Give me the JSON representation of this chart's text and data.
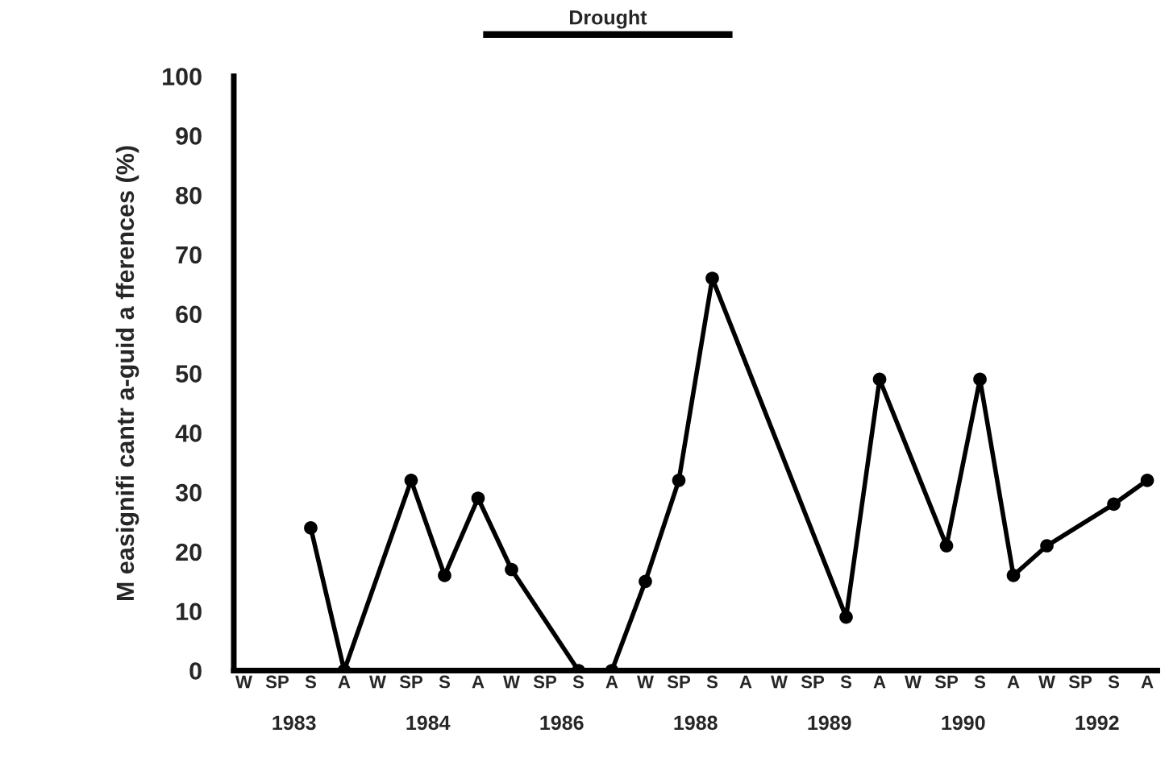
{
  "chart_data": {
    "type": "line",
    "ylabel": "M easignifi cantr a-guid a fferences (%)",
    "categories": [
      "W",
      "SP",
      "S",
      "A",
      "W",
      "SP",
      "S",
      "A",
      "W",
      "SP",
      "S",
      "A",
      "W",
      "SP",
      "S",
      "A",
      "W",
      "SP",
      "S",
      "A",
      "W",
      "SP",
      "S",
      "A",
      "W",
      "SP",
      "S",
      "A"
    ],
    "series": [
      {
        "color": "#000000",
        "values": [
          null,
          null,
          24,
          0,
          null,
          32,
          16,
          29,
          17,
          null,
          0,
          0,
          15,
          32,
          66,
          null,
          null,
          null,
          9,
          49,
          null,
          21,
          49,
          16,
          21,
          null,
          28,
          32
        ]
      }
    ],
    "ylim": [
      0,
      100
    ],
    "yticks": [
      0,
      10,
      20,
      30,
      40,
      50,
      60,
      70,
      80,
      90,
      100
    ],
    "annotations": [
      "Drought",
      "1983",
      "1984",
      "1986",
      "1988",
      "1989",
      "1990",
      "1992"
    ],
    "marker": "circle",
    "line_style": "solid",
    "grid": false
  }
}
